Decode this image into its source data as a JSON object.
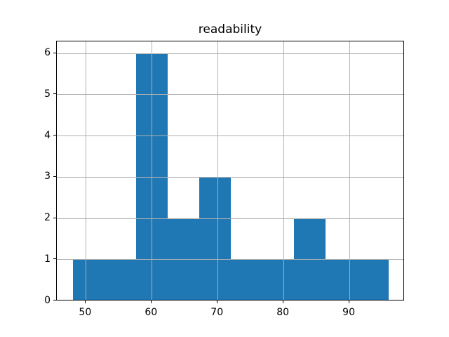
{
  "chart_data": {
    "type": "bar",
    "subtype": "histogram",
    "title": "readability",
    "xlabel": "",
    "ylabel": "",
    "bin_edges": [
      48.0,
      52.8,
      57.6,
      62.4,
      67.2,
      72.0,
      76.8,
      81.6,
      86.4,
      91.2,
      96.0
    ],
    "counts": [
      1,
      1,
      6,
      2,
      3,
      1,
      1,
      2,
      1,
      1
    ],
    "x_ticks": [
      50,
      60,
      70,
      80,
      90
    ],
    "y_ticks": [
      0,
      1,
      2,
      3,
      4,
      5,
      6
    ],
    "xlim": [
      45.6,
      98.4
    ],
    "ylim": [
      0,
      6.3
    ],
    "grid": true,
    "grid_above_bars": true,
    "bar_color": "#1f77b4",
    "grid_color": "#b0b0b0",
    "spine_color": "#000000",
    "text_color": "#000000",
    "background_color": "#ffffff"
  }
}
